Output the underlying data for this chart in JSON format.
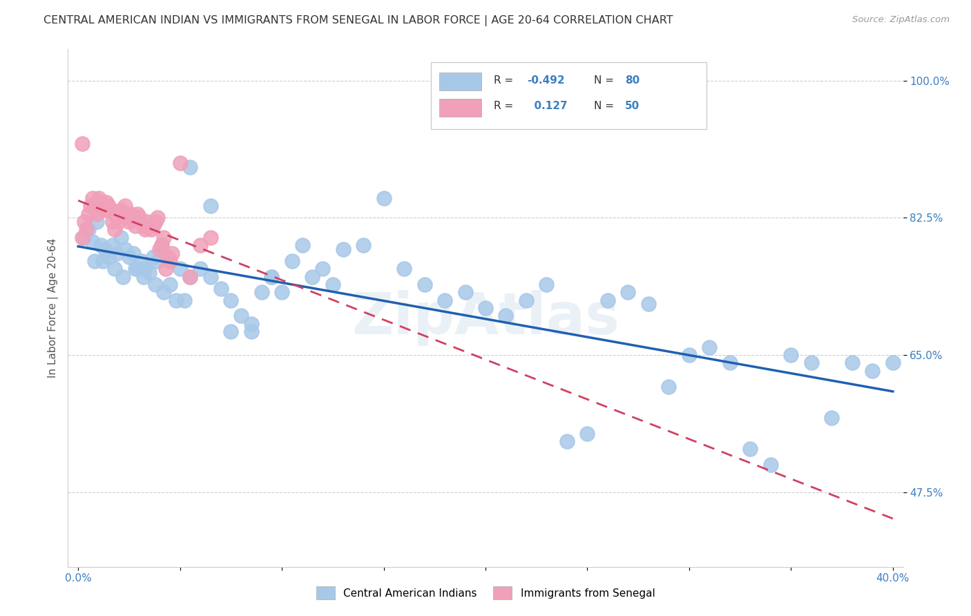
{
  "title": "CENTRAL AMERICAN INDIAN VS IMMIGRANTS FROM SENEGAL IN LABOR FORCE | AGE 20-64 CORRELATION CHART",
  "source": "Source: ZipAtlas.com",
  "ylabel": "In Labor Force | Age 20-64",
  "watermark": "ZipAtlas",
  "xlim": [
    -0.005,
    0.405
  ],
  "ylim": [
    0.38,
    1.04
  ],
  "xtick_positions": [
    0.0,
    0.05,
    0.1,
    0.15,
    0.2,
    0.25,
    0.3,
    0.35,
    0.4
  ],
  "xticklabels": [
    "0.0%",
    "",
    "",
    "",
    "",
    "",
    "",
    "",
    "40.0%"
  ],
  "ytick_positions": [
    0.475,
    0.65,
    0.825,
    1.0
  ],
  "ytick_labels": [
    "47.5%",
    "65.0%",
    "82.5%",
    "100.0%"
  ],
  "blue_color": "#a8c8e8",
  "pink_color": "#f0a0b8",
  "blue_line_color": "#2060b0",
  "pink_line_color": "#d04060",
  "title_fontsize": 11.5,
  "axis_label_fontsize": 11,
  "tick_fontsize": 11,
  "grid_color": "#cccccc",
  "background_color": "#ffffff",
  "legend_box_color": "#f8f8f8",
  "legend_border_color": "#cccccc",
  "blue_x": [
    0.003,
    0.005,
    0.007,
    0.009,
    0.011,
    0.013,
    0.015,
    0.017,
    0.019,
    0.021,
    0.023,
    0.025,
    0.027,
    0.029,
    0.031,
    0.033,
    0.035,
    0.037,
    0.039,
    0.041,
    0.045,
    0.05,
    0.055,
    0.06,
    0.065,
    0.07,
    0.075,
    0.08,
    0.085,
    0.09,
    0.095,
    0.1,
    0.11,
    0.12,
    0.13,
    0.14,
    0.15,
    0.16,
    0.17,
    0.18,
    0.19,
    0.2,
    0.21,
    0.22,
    0.23,
    0.24,
    0.25,
    0.26,
    0.27,
    0.28,
    0.29,
    0.3,
    0.31,
    0.32,
    0.33,
    0.34,
    0.35,
    0.36,
    0.37,
    0.38,
    0.39,
    0.4,
    0.055,
    0.065,
    0.075,
    0.085,
    0.095,
    0.105,
    0.115,
    0.125,
    0.008,
    0.012,
    0.018,
    0.022,
    0.028,
    0.032,
    0.038,
    0.042,
    0.048,
    0.052
  ],
  "blue_y": [
    0.8,
    0.81,
    0.795,
    0.82,
    0.79,
    0.785,
    0.775,
    0.79,
    0.78,
    0.8,
    0.785,
    0.775,
    0.78,
    0.76,
    0.77,
    0.76,
    0.755,
    0.775,
    0.77,
    0.79,
    0.74,
    0.76,
    0.75,
    0.76,
    0.75,
    0.735,
    0.72,
    0.7,
    0.69,
    0.73,
    0.75,
    0.73,
    0.79,
    0.76,
    0.785,
    0.79,
    0.85,
    0.76,
    0.74,
    0.72,
    0.73,
    0.71,
    0.7,
    0.72,
    0.74,
    0.54,
    0.55,
    0.72,
    0.73,
    0.715,
    0.61,
    0.65,
    0.66,
    0.64,
    0.53,
    0.51,
    0.65,
    0.64,
    0.57,
    0.64,
    0.63,
    0.64,
    0.89,
    0.84,
    0.68,
    0.68,
    0.75,
    0.77,
    0.75,
    0.74,
    0.77,
    0.77,
    0.76,
    0.75,
    0.76,
    0.75,
    0.74,
    0.73,
    0.72,
    0.72
  ],
  "pink_x": [
    0.002,
    0.003,
    0.004,
    0.005,
    0.006,
    0.007,
    0.008,
    0.009,
    0.01,
    0.011,
    0.012,
    0.013,
    0.014,
    0.015,
    0.016,
    0.017,
    0.018,
    0.019,
    0.02,
    0.021,
    0.022,
    0.023,
    0.024,
    0.025,
    0.026,
    0.027,
    0.028,
    0.029,
    0.03,
    0.031,
    0.032,
    0.033,
    0.034,
    0.035,
    0.036,
    0.037,
    0.038,
    0.039,
    0.04,
    0.041,
    0.042,
    0.043,
    0.044,
    0.045,
    0.046,
    0.05,
    0.055,
    0.06,
    0.065,
    0.002
  ],
  "pink_y": [
    0.8,
    0.82,
    0.81,
    0.83,
    0.84,
    0.85,
    0.84,
    0.83,
    0.85,
    0.845,
    0.84,
    0.835,
    0.845,
    0.84,
    0.835,
    0.82,
    0.81,
    0.825,
    0.82,
    0.835,
    0.83,
    0.84,
    0.825,
    0.82,
    0.83,
    0.825,
    0.815,
    0.83,
    0.825,
    0.82,
    0.815,
    0.81,
    0.82,
    0.815,
    0.81,
    0.815,
    0.82,
    0.825,
    0.785,
    0.79,
    0.8,
    0.76,
    0.775,
    0.77,
    0.78,
    0.895,
    0.75,
    0.79,
    0.8,
    0.92
  ]
}
